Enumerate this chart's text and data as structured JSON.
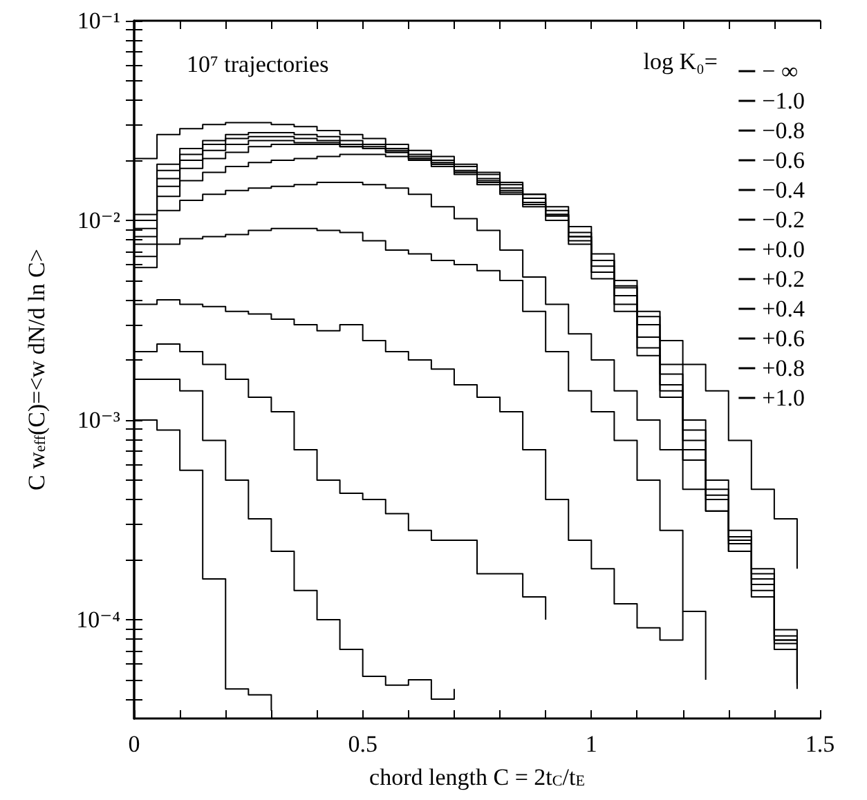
{
  "chart_data": {
    "type": "step",
    "xlabel": "chord length C = 2t$_{C}$/t$_{E}$",
    "ylabel": "C w$_{eff}$(C)=<w dN/d ln C>",
    "legend_title": "log K₀=",
    "annotations": [
      "10⁷ trajectories"
    ],
    "legend": "top right",
    "log": "y",
    "grid": false,
    "line_style": "solid",
    "marker": "none",
    "xlim": [
      0,
      1.5
    ],
    "ylim": [
      3.2e-05,
      0.1
    ],
    "xticks": [
      0,
      {
        "value": 0.1,
        "label": null
      },
      {
        "value": 0.2,
        "label": null
      },
      {
        "value": 0.3,
        "label": null
      },
      {
        "value": 0.4,
        "label": null
      },
      0.5,
      {
        "value": 0.6,
        "label": null
      },
      {
        "value": 0.7,
        "label": null
      },
      {
        "value": 0.8,
        "label": null
      },
      {
        "value": 0.9,
        "label": null
      },
      1,
      {
        "value": 1.1,
        "label": null
      },
      {
        "value": 1.2,
        "label": null
      },
      {
        "value": 1.3,
        "label": null
      },
      {
        "value": 1.4,
        "label": null
      },
      1.5
    ],
    "yticks": [
      {
        "value": 4e-05,
        "label": null
      },
      {
        "value": 5e-05,
        "label": null
      },
      {
        "value": 6e-05,
        "label": null
      },
      {
        "value": 7e-05,
        "label": null
      },
      {
        "value": 8e-05,
        "label": null
      },
      {
        "value": 9e-05,
        "label": null
      },
      {
        "value": 0.0001,
        "label": "10⁻⁴"
      },
      {
        "value": 0.0002,
        "label": null
      },
      {
        "value": 0.0003,
        "label": null
      },
      {
        "value": 0.0004,
        "label": null
      },
      {
        "value": 0.0005,
        "label": null
      },
      {
        "value": 0.0006,
        "label": null
      },
      {
        "value": 0.0007,
        "label": null
      },
      {
        "value": 0.0008,
        "label": null
      },
      {
        "value": 0.0009,
        "label": null
      },
      {
        "value": 0.001,
        "label": "10⁻³"
      },
      {
        "value": 0.002,
        "label": null
      },
      {
        "value": 0.003,
        "label": null
      },
      {
        "value": 0.004,
        "label": null
      },
      {
        "value": 0.005,
        "label": null
      },
      {
        "value": 0.006,
        "label": null
      },
      {
        "value": 0.007,
        "label": null
      },
      {
        "value": 0.008,
        "label": null
      },
      {
        "value": 0.009,
        "label": null
      },
      {
        "value": 0.01,
        "label": "10⁻²"
      },
      {
        "value": 0.02,
        "label": null
      },
      {
        "value": 0.03,
        "label": null
      },
      {
        "value": 0.04,
        "label": null
      },
      {
        "value": 0.05,
        "label": null
      },
      {
        "value": 0.06,
        "label": null
      },
      {
        "value": 0.07,
        "label": null
      },
      {
        "value": 0.08,
        "label": null
      },
      {
        "value": 0.09,
        "label": null
      },
      {
        "value": 0.1,
        "label": "10⁻¹"
      }
    ],
    "x": [
      0,
      0.05,
      0.1,
      0.15,
      0.2,
      0.25,
      0.3,
      0.35,
      0.4,
      0.45,
      0.5,
      0.55,
      0.6,
      0.65,
      0.7,
      0.75,
      0.8,
      0.85,
      0.9,
      0.95,
      1,
      1.05,
      1.1,
      1.15,
      1.2,
      1.25,
      1.3,
      1.35,
      1.4,
      1.45
    ],
    "series": [
      {
        "name": "− ∞",
        "color": "#000000",
        "values": [
          0.0204,
          0.0269,
          0.0288,
          0.0302,
          0.0309,
          0.0309,
          0.0302,
          0.0295,
          0.0282,
          0.0269,
          0.0257,
          0.024,
          0.0224,
          0.0209,
          0.0191,
          0.0174,
          0.0155,
          0.0135,
          0.0107,
          0.0083,
          0.0063,
          0.0047,
          0.0035,
          0.0025,
          0.0019,
          0.0014,
          0.00079,
          0.00045,
          0.00032,
          0.00018
        ]
      },
      {
        "name": "−1.0",
        "color": "#000000",
        "values": [
          0.0107,
          0.0191,
          0.0229,
          0.0251,
          0.0269,
          0.0275,
          0.0275,
          0.0269,
          0.0263,
          0.0251,
          0.024,
          0.0229,
          0.0214,
          0.02,
          0.0186,
          0.017,
          0.0151,
          0.0135,
          0.0117,
          0.0093,
          0.0068,
          0.005,
          0.0033,
          0.0019,
          0.001,
          0.0005,
          0.00028,
          0.00018,
          8.9e-05,
          5e-05
        ]
      },
      {
        "name": "−0.8",
        "color": "#000000",
        "values": [
          0.01,
          0.0178,
          0.0214,
          0.024,
          0.0257,
          0.0263,
          0.0263,
          0.0257,
          0.0251,
          0.024,
          0.0234,
          0.0224,
          0.0209,
          0.0195,
          0.0178,
          0.0162,
          0.0145,
          0.0129,
          0.0112,
          0.0087,
          0.0063,
          0.0046,
          0.003,
          0.0017,
          0.00089,
          0.00045,
          0.00026,
          0.00017,
          8.3e-05,
          4.8e-05
        ]
      },
      {
        "name": "−0.6",
        "color": "#000000",
        "values": [
          0.0091,
          0.0162,
          0.02,
          0.0224,
          0.024,
          0.0251,
          0.0251,
          0.0245,
          0.0245,
          0.0234,
          0.0229,
          0.0219,
          0.0204,
          0.0191,
          0.0174,
          0.0158,
          0.0141,
          0.0123,
          0.0107,
          0.0083,
          0.0059,
          0.0042,
          0.0026,
          0.0015,
          0.00079,
          0.00042,
          0.00025,
          0.00016,
          7.9e-05,
          4.8e-05
        ]
      },
      {
        "name": "−0.4",
        "color": "#000000",
        "values": [
          0.0083,
          0.0148,
          0.0182,
          0.0204,
          0.0219,
          0.0234,
          0.024,
          0.024,
          0.024,
          0.0234,
          0.0229,
          0.0219,
          0.0204,
          0.0191,
          0.0174,
          0.0155,
          0.0138,
          0.012,
          0.0105,
          0.0079,
          0.0055,
          0.0038,
          0.0023,
          0.0014,
          0.00071,
          0.0004,
          0.00024,
          0.00015,
          7.6e-05,
          4.7e-05
        ]
      },
      {
        "name": "−0.2",
        "color": "#000000",
        "values": [
          0.0076,
          0.0132,
          0.0158,
          0.0174,
          0.0186,
          0.0195,
          0.02,
          0.0204,
          0.0209,
          0.0214,
          0.0214,
          0.0209,
          0.02,
          0.0186,
          0.017,
          0.0151,
          0.0135,
          0.0117,
          0.01,
          0.0076,
          0.0051,
          0.0035,
          0.0021,
          0.0013,
          0.00063,
          0.00035,
          0.00022,
          0.00014,
          7.1e-05,
          4.5e-05
        ]
      },
      {
        "name": "+0.0",
        "color": "#000000",
        "values": [
          0.0066,
          0.0112,
          0.0126,
          0.0135,
          0.0141,
          0.0145,
          0.0148,
          0.0151,
          0.0155,
          0.0155,
          0.0151,
          0.0145,
          0.0135,
          0.0117,
          0.0102,
          0.0089,
          0.0071,
          0.0052,
          0.0038,
          0.0027,
          0.002,
          0.0014,
          0.001,
          0.00071,
          0.00045,
          0.00035,
          0.00022,
          0.00013,
          7.9e-05,
          5.6e-05
        ]
      },
      {
        "name": "+0.2",
        "color": "#000000",
        "values": [
          0.0058,
          0.0076,
          0.0081,
          0.0083,
          0.0085,
          0.0089,
          0.0091,
          0.0091,
          0.0089,
          0.0087,
          0.0079,
          0.0071,
          0.0068,
          0.0063,
          0.006,
          0.0056,
          0.005,
          0.0035,
          0.0022,
          0.0014,
          0.0011,
          0.00079,
          0.0005,
          0.00028,
          0.00011,
          5e-05,
          null,
          null,
          null,
          null
        ]
      },
      {
        "name": "+0.4",
        "color": "#000000",
        "values": [
          0.0038,
          0.004,
          0.0038,
          0.0037,
          0.0035,
          0.0034,
          0.0032,
          0.003,
          0.0028,
          0.003,
          0.0025,
          0.0022,
          0.002,
          0.0018,
          0.0015,
          0.0013,
          0.0011,
          0.00071,
          0.0004,
          0.00025,
          0.00018,
          0.00012,
          9.1e-05,
          7.9e-05,
          0.00011,
          null,
          null,
          null,
          null,
          null
        ]
      },
      {
        "name": "+0.6",
        "color": "#000000",
        "values": [
          0.0022,
          0.0024,
          0.0022,
          0.0019,
          0.0016,
          0.0013,
          0.0011,
          0.00071,
          0.0005,
          0.00043,
          0.0004,
          0.00034,
          0.00028,
          0.00025,
          0.00025,
          0.00017,
          0.00017,
          0.00013,
          0.0001,
          null,
          null,
          null,
          null,
          null,
          null,
          null,
          null,
          null,
          null,
          null
        ]
      },
      {
        "name": "+0.8",
        "color": "#000000",
        "values": [
          0.0016,
          0.0016,
          0.0014,
          0.00079,
          0.0005,
          0.00032,
          0.00022,
          0.00014,
          0.0001,
          7.1e-05,
          5.2e-05,
          4.7e-05,
          5e-05,
          4e-05,
          4.5e-05,
          null,
          null,
          null,
          null,
          null,
          null,
          null,
          null,
          null,
          null,
          null,
          null,
          null,
          null,
          null
        ]
      },
      {
        "name": "+1.0",
        "color": "#000000",
        "values": [
          0.001,
          0.00089,
          0.00056,
          0.00016,
          4.5e-05,
          4.2e-05,
          3.5e-05,
          null,
          null,
          null,
          null,
          null,
          null,
          null,
          null,
          null,
          null,
          null,
          null,
          null,
          null,
          null,
          null,
          null,
          null,
          null,
          null,
          null,
          null,
          null
        ]
      }
    ]
  }
}
